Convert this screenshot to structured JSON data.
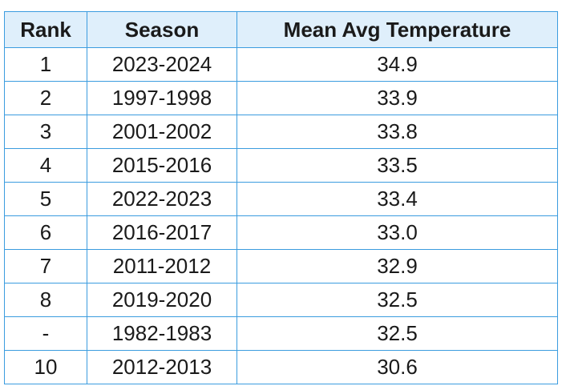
{
  "table": {
    "headers": [
      "Rank",
      "Season",
      "Mean Avg Temperature"
    ],
    "rows": [
      [
        "1",
        "2023-2024",
        "34.9"
      ],
      [
        "2",
        "1997-1998",
        "33.9"
      ],
      [
        "3",
        "2001-2002",
        "33.8"
      ],
      [
        "4",
        "2015-2016",
        "33.5"
      ],
      [
        "5",
        "2022-2023",
        "33.4"
      ],
      [
        "6",
        "2016-2017",
        "33.0"
      ],
      [
        "7",
        "2011-2012",
        "32.9"
      ],
      [
        "8",
        "2019-2020",
        "32.5"
      ],
      [
        "-",
        "1982-1983",
        "32.5"
      ],
      [
        "10",
        "2012-2013",
        "30.6"
      ]
    ]
  },
  "colors": {
    "border": "#3b9cdf",
    "header_background": "#dfeffb",
    "text": "#1a1a1a"
  }
}
